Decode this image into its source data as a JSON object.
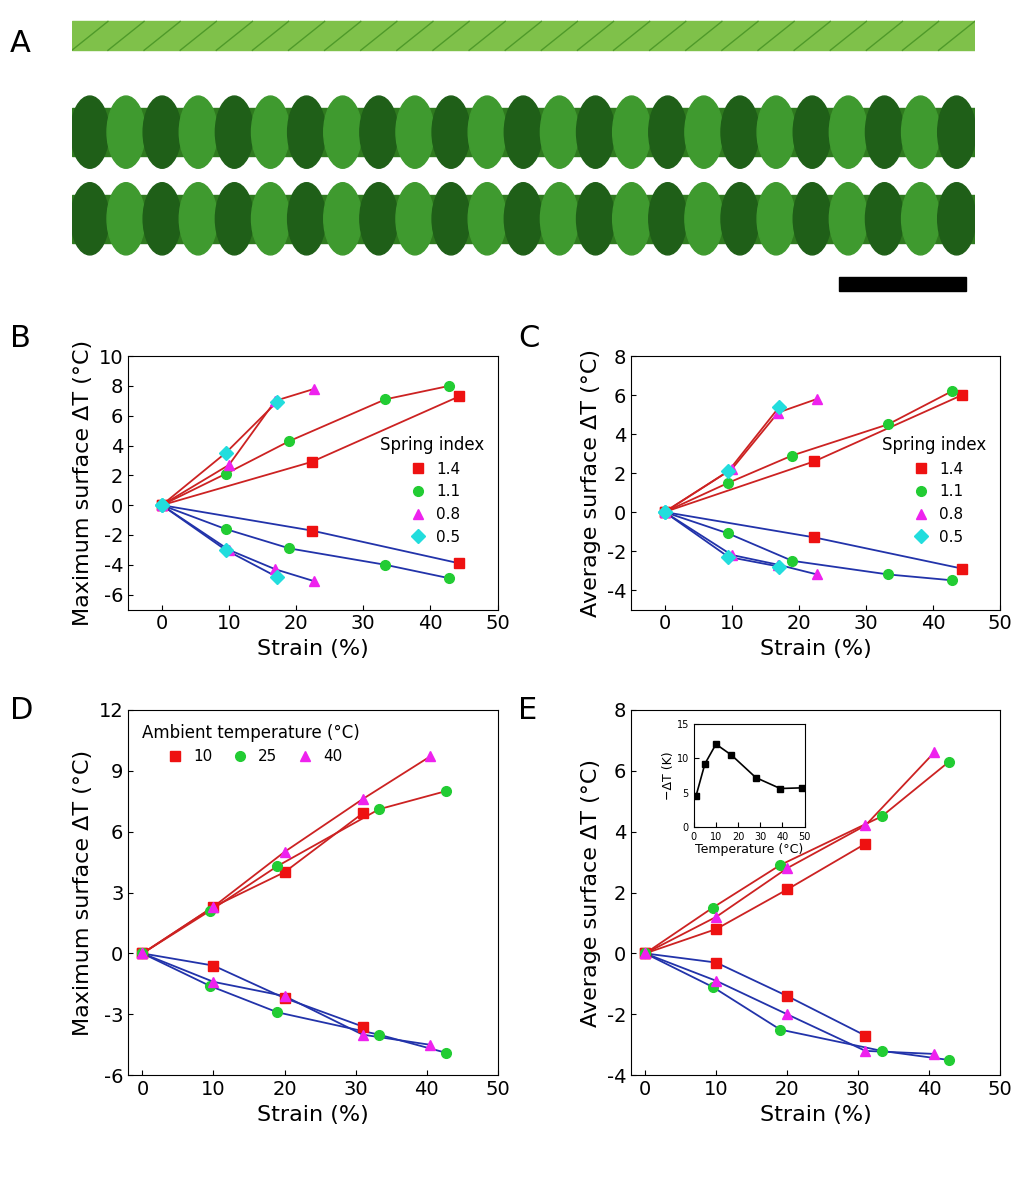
{
  "image_panel": {
    "label": "A"
  },
  "chart_data": [
    {
      "type": "line",
      "label": "B",
      "xlabel": "Strain (%)",
      "ylabel": "Maximum surface ΔT (°C)",
      "legend_title": "Spring index",
      "legend": "center right",
      "xlim": [
        -5,
        50
      ],
      "xticks": [
        0,
        10,
        20,
        30,
        40,
        50
      ],
      "ylim": [
        -7,
        10
      ],
      "yticks": [
        -6,
        -4,
        -2,
        0,
        2,
        4,
        6,
        8,
        10
      ],
      "colors": [
        "#cc2222",
        "#2233aa"
      ],
      "series": [
        {
          "name": "1.4",
          "color": "#ee1111",
          "marker": "square",
          "x": [
            0,
            22.3,
            44.3
          ],
          "values": [
            0,
            2.9,
            7.3
          ]
        },
        {
          "name": "1.4",
          "color": "#ee1111",
          "marker": "square",
          "x": [
            0,
            22.3,
            44.3
          ],
          "values": [
            0,
            -1.7,
            -3.9
          ]
        },
        {
          "name": "1.1",
          "color": "#22cc33",
          "marker": "circle",
          "x": [
            0,
            9.5,
            19,
            33.3,
            42.8
          ],
          "values": [
            0,
            2.1,
            4.3,
            7.1,
            8.0
          ]
        },
        {
          "name": "1.1",
          "color": "#22cc33",
          "marker": "circle",
          "x": [
            0,
            9.5,
            19,
            33.3,
            42.8
          ],
          "values": [
            0,
            -1.6,
            -2.9,
            -4.0,
            -4.9
          ]
        },
        {
          "name": "0.8",
          "color": "#ee22ee",
          "marker": "triangle",
          "x": [
            0,
            10,
            16.9,
            22.7
          ],
          "values": [
            0,
            2.7,
            7.0,
            7.8
          ]
        },
        {
          "name": "0.8",
          "color": "#ee22ee",
          "marker": "triangle",
          "x": [
            0,
            10,
            16.9,
            22.7
          ],
          "values": [
            0,
            -3.0,
            -4.3,
            -5.1
          ]
        },
        {
          "name": "0.5",
          "color": "#22dddd",
          "marker": "diamond",
          "x": [
            0,
            9.5,
            17.1
          ],
          "values": [
            0,
            3.5,
            6.9
          ]
        },
        {
          "name": "0.5",
          "color": "#22dddd",
          "marker": "diamond",
          "x": [
            0,
            9.5,
            17.1
          ],
          "values": [
            0,
            -3.0,
            -4.8
          ]
        }
      ]
    },
    {
      "type": "line",
      "label": "C",
      "xlabel": "Strain (%)",
      "ylabel": "Average surface ΔT (°C)",
      "legend_title": "Spring index",
      "legend": "center right",
      "xlim": [
        -5,
        50
      ],
      "xticks": [
        0,
        10,
        20,
        30,
        40,
        50
      ],
      "ylim": [
        -5,
        8
      ],
      "yticks": [
        -4,
        -2,
        0,
        2,
        4,
        6,
        8
      ],
      "colors": [
        "#cc2222",
        "#2233aa"
      ],
      "series": [
        {
          "name": "1.4",
          "color": "#ee1111",
          "marker": "square",
          "x": [
            0,
            22.3,
            44.3
          ],
          "values": [
            0,
            2.6,
            6.0
          ]
        },
        {
          "name": "1.4",
          "color": "#ee1111",
          "marker": "square",
          "x": [
            0,
            22.3,
            44.3
          ],
          "values": [
            0,
            -1.3,
            -2.9
          ]
        },
        {
          "name": "1.1",
          "color": "#22cc33",
          "marker": "circle",
          "x": [
            0,
            9.5,
            19,
            33.3,
            42.8
          ],
          "values": [
            0,
            1.5,
            2.9,
            4.5,
            6.2
          ]
        },
        {
          "name": "1.1",
          "color": "#22cc33",
          "marker": "circle",
          "x": [
            0,
            9.5,
            19,
            33.3,
            42.8
          ],
          "values": [
            0,
            -1.1,
            -2.5,
            -3.2,
            -3.5
          ]
        },
        {
          "name": "0.8",
          "color": "#ee22ee",
          "marker": "triangle",
          "x": [
            0,
            10,
            16.9,
            22.7
          ],
          "values": [
            0,
            2.2,
            5.1,
            5.8
          ]
        },
        {
          "name": "0.8",
          "color": "#ee22ee",
          "marker": "triangle",
          "x": [
            0,
            10,
            16.9,
            22.7
          ],
          "values": [
            0,
            -2.2,
            -2.7,
            -3.2
          ]
        },
        {
          "name": "0.5",
          "color": "#22dddd",
          "marker": "diamond",
          "x": [
            0,
            9.5,
            17.1
          ],
          "values": [
            0,
            2.1,
            5.4
          ]
        },
        {
          "name": "0.5",
          "color": "#22dddd",
          "marker": "diamond",
          "x": [
            0,
            9.5,
            17.1
          ],
          "values": [
            0,
            -2.3,
            -2.8
          ]
        }
      ]
    },
    {
      "type": "line",
      "label": "D",
      "xlabel": "Strain (%)",
      "ylabel": "Maximum surface ΔT (°C)",
      "legend_title": "Ambient temperature (°C)",
      "legend": "upper left",
      "xlim": [
        -2,
        50
      ],
      "xticks": [
        0,
        10,
        20,
        30,
        40,
        50
      ],
      "ylim": [
        -6,
        12
      ],
      "yticks": [
        -6,
        -3,
        0,
        3,
        6,
        9,
        12
      ],
      "colors": [
        "#cc2222",
        "#2233aa"
      ],
      "series": [
        {
          "name": "10",
          "color": "#ee1111",
          "marker": "square",
          "x": [
            0,
            10,
            20,
            31
          ],
          "values": [
            0,
            2.3,
            4.0,
            6.9
          ]
        },
        {
          "name": "10",
          "color": "#ee1111",
          "marker": "square",
          "x": [
            0,
            10,
            20,
            31
          ],
          "values": [
            0,
            -0.6,
            -2.2,
            -3.6
          ]
        },
        {
          "name": "25",
          "color": "#22cc33",
          "marker": "circle",
          "x": [
            0,
            9.5,
            19,
            33.3,
            42.8
          ],
          "values": [
            0,
            2.1,
            4.3,
            7.1,
            8.0
          ]
        },
        {
          "name": "25",
          "color": "#22cc33",
          "marker": "circle",
          "x": [
            0,
            9.5,
            19,
            33.3,
            42.8
          ],
          "values": [
            0,
            -1.6,
            -2.9,
            -4.0,
            -4.9
          ]
        },
        {
          "name": "40",
          "color": "#ee22ee",
          "marker": "triangle",
          "x": [
            0,
            10,
            20,
            31,
            40.5
          ],
          "values": [
            0,
            2.3,
            5.0,
            7.6,
            9.7
          ]
        },
        {
          "name": "40",
          "color": "#ee22ee",
          "marker": "triangle",
          "x": [
            0,
            10,
            20,
            31,
            40.5
          ],
          "values": [
            0,
            -1.4,
            -2.1,
            -4.0,
            -4.5
          ]
        }
      ]
    },
    {
      "type": "line",
      "label": "E",
      "xlabel": "Strain (%)",
      "ylabel": "Average surface ΔT (°C)",
      "xlim": [
        -2,
        50
      ],
      "xticks": [
        0,
        10,
        20,
        30,
        40,
        50
      ],
      "ylim": [
        -4,
        8
      ],
      "yticks": [
        -4,
        -2,
        0,
        2,
        4,
        6,
        8
      ],
      "colors": [
        "#cc2222",
        "#2233aa"
      ],
      "series": [
        {
          "name": "10",
          "color": "#ee1111",
          "marker": "square",
          "x": [
            0,
            10,
            20,
            31
          ],
          "values": [
            0,
            0.8,
            2.1,
            3.6
          ]
        },
        {
          "name": "10",
          "color": "#ee1111",
          "marker": "square",
          "x": [
            0,
            10,
            20,
            31
          ],
          "values": [
            0,
            -0.3,
            -1.4,
            -2.7
          ]
        },
        {
          "name": "25",
          "color": "#22cc33",
          "marker": "circle",
          "x": [
            0,
            9.5,
            19,
            33.3,
            42.8
          ],
          "values": [
            0,
            1.5,
            2.9,
            4.5,
            6.3
          ]
        },
        {
          "name": "25",
          "color": "#22cc33",
          "marker": "circle",
          "x": [
            0,
            9.5,
            19,
            33.3,
            42.8
          ],
          "values": [
            0,
            -1.1,
            -2.5,
            -3.2,
            -3.5
          ]
        },
        {
          "name": "40",
          "color": "#ee22ee",
          "marker": "triangle",
          "x": [
            0,
            10,
            20,
            31,
            40.7
          ],
          "values": [
            0,
            1.2,
            2.8,
            4.2,
            6.6
          ]
        },
        {
          "name": "40",
          "color": "#ee22ee",
          "marker": "triangle",
          "x": [
            0,
            10,
            20,
            31,
            40.7
          ],
          "values": [
            0,
            -0.9,
            -2.0,
            -3.2,
            -3.3
          ]
        }
      ],
      "inset": {
        "type": "line",
        "xlabel": "Temperature (°C)",
        "ylabel": "−ΔT (K)",
        "xlim": [
          0,
          50
        ],
        "xticks": [
          0,
          10,
          20,
          30,
          40,
          50
        ],
        "ylim": [
          0,
          15
        ],
        "yticks": [
          0,
          5,
          10,
          15
        ],
        "color": "#000000",
        "marker": "square",
        "x": [
          1,
          5,
          10,
          17,
          28,
          39,
          49
        ],
        "values": [
          4.5,
          9.2,
          12.1,
          10.5,
          7.2,
          5.6,
          5.7
        ]
      }
    }
  ]
}
